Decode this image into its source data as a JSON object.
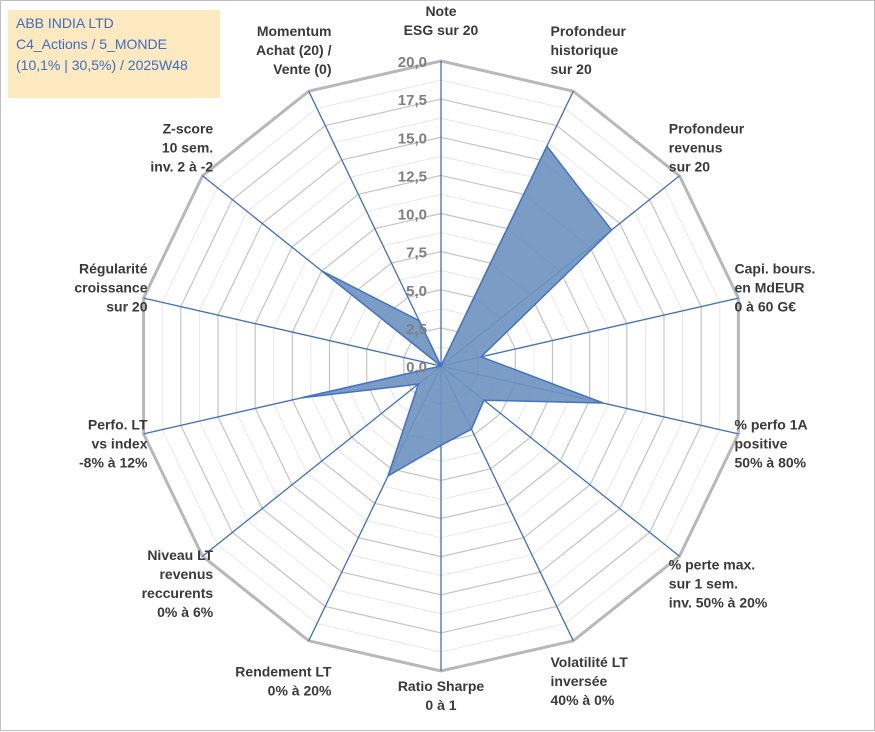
{
  "header": {
    "company": "ABB INDIA LTD",
    "portfolio": "C4_Actions / 5_MONDE",
    "period": "(10,1% | 30,5%) / 2025W48"
  },
  "chart_data": {
    "type": "radar",
    "axes": [
      [
        "Note",
        "ESG sur 20"
      ],
      [
        "Profondeur",
        "historique",
        "sur 20"
      ],
      [
        "Profondeur",
        "revenus",
        "sur 20"
      ],
      [
        "Capi. bours.",
        "en MdEUR",
        "0 à 60 G€"
      ],
      [
        "% perfo 1A",
        "positive",
        "50% à 80%"
      ],
      [
        "% perte max.",
        "sur 1 sem.",
        "inv. 50% à 20%"
      ],
      [
        "Volatilité LT",
        "inversée",
        "40% à 0%"
      ],
      [
        "Ratio Sharpe",
        "0 à 1"
      ],
      [
        "Rendement LT",
        "0% à 20%"
      ],
      [
        "Niveau LT",
        "revenus",
        "reccurents",
        "0% à 6%"
      ],
      [
        "Perfo. LT",
        "vs index",
        "-8% à 12%"
      ],
      [
        "Régularité",
        "croissance",
        "sur 20"
      ],
      [
        "Z-score",
        "10 sem.",
        "inv. 2 à -2"
      ],
      [
        "Momentum",
        "Achat (20) /",
        "Vente (0)"
      ]
    ],
    "values": [
      0,
      16.0,
      14.3,
      2.7,
      10.9,
      3.6,
      4.6,
      5.2,
      8.0,
      1.9,
      9.4,
      0.0,
      10.0,
      3.3
    ],
    "range": [
      0,
      20
    ],
    "ticks": [
      "0,0",
      "2,5",
      "5,0",
      "7,5",
      "10,0",
      "12,5",
      "15,0",
      "17,5",
      "20,0"
    ],
    "colors": {
      "fill": "#6f94c0",
      "fill_stroke": "#4472c4",
      "spoke": "#3f6fc0",
      "grid": "#c8c8c8",
      "outer": "#b8b8b8"
    }
  }
}
